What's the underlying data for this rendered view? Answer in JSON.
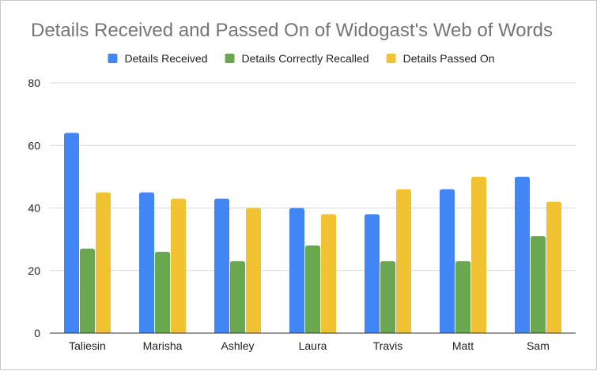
{
  "chart_data": {
    "type": "bar",
    "title": "Details Received and Passed On of Widogast's Web of Words",
    "xlabel": "",
    "ylabel": "",
    "categories": [
      "Taliesin",
      "Marisha",
      "Ashley",
      "Laura",
      "Travis",
      "Matt",
      "Sam"
    ],
    "series": [
      {
        "name": "Details Received",
        "color": "#4285f4",
        "values": [
          64,
          45,
          43,
          40,
          38,
          46,
          50
        ]
      },
      {
        "name": "Details Correctly Recalled",
        "color": "#6aa84f",
        "values": [
          27,
          26,
          23,
          28,
          23,
          23,
          31
        ]
      },
      {
        "name": "Details Passed On",
        "color": "#f1c232",
        "values": [
          45,
          43,
          40,
          38,
          46,
          50,
          42
        ]
      }
    ],
    "ylim": [
      0,
      80
    ],
    "yticks": [
      0,
      20,
      40,
      60,
      80
    ],
    "grid": true,
    "legend_position": "top-center"
  }
}
